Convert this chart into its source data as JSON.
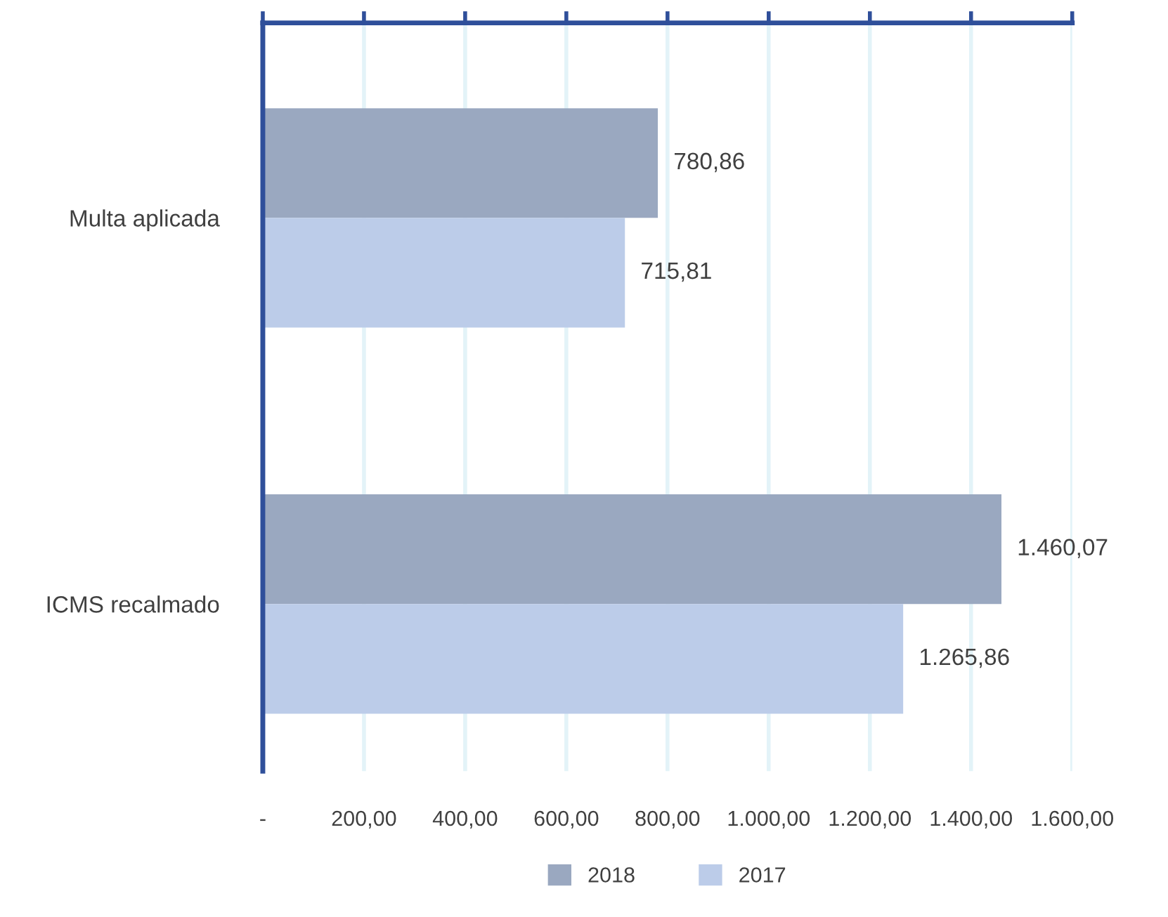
{
  "chart_data": {
    "type": "bar",
    "orientation": "horizontal",
    "categories": [
      "Multa aplicada",
      "ICMS recalmado"
    ],
    "series": [
      {
        "name": "2018",
        "color": "#9aa8c0",
        "values": [
          780.86,
          1460.07
        ],
        "value_labels": [
          "780,86",
          "1.460,07"
        ]
      },
      {
        "name": "2017",
        "color": "#bccce9",
        "values": [
          715.81,
          1265.86
        ],
        "value_labels": [
          "715,81",
          "1.265,86"
        ]
      }
    ],
    "xlim": [
      0,
      1600
    ],
    "xticks": [
      {
        "value": 0,
        "label": "-"
      },
      {
        "value": 200,
        "label": "200,00"
      },
      {
        "value": 400,
        "label": "400,00"
      },
      {
        "value": 600,
        "label": "600,00"
      },
      {
        "value": 800,
        "label": "800,00"
      },
      {
        "value": 1000,
        "label": "1.000,00"
      },
      {
        "value": 1200,
        "label": "1.200,00"
      },
      {
        "value": 1400,
        "label": "1.400,00"
      },
      {
        "value": 1600,
        "label": "1.600,00"
      }
    ],
    "grid": "x",
    "legend": "bottom"
  }
}
